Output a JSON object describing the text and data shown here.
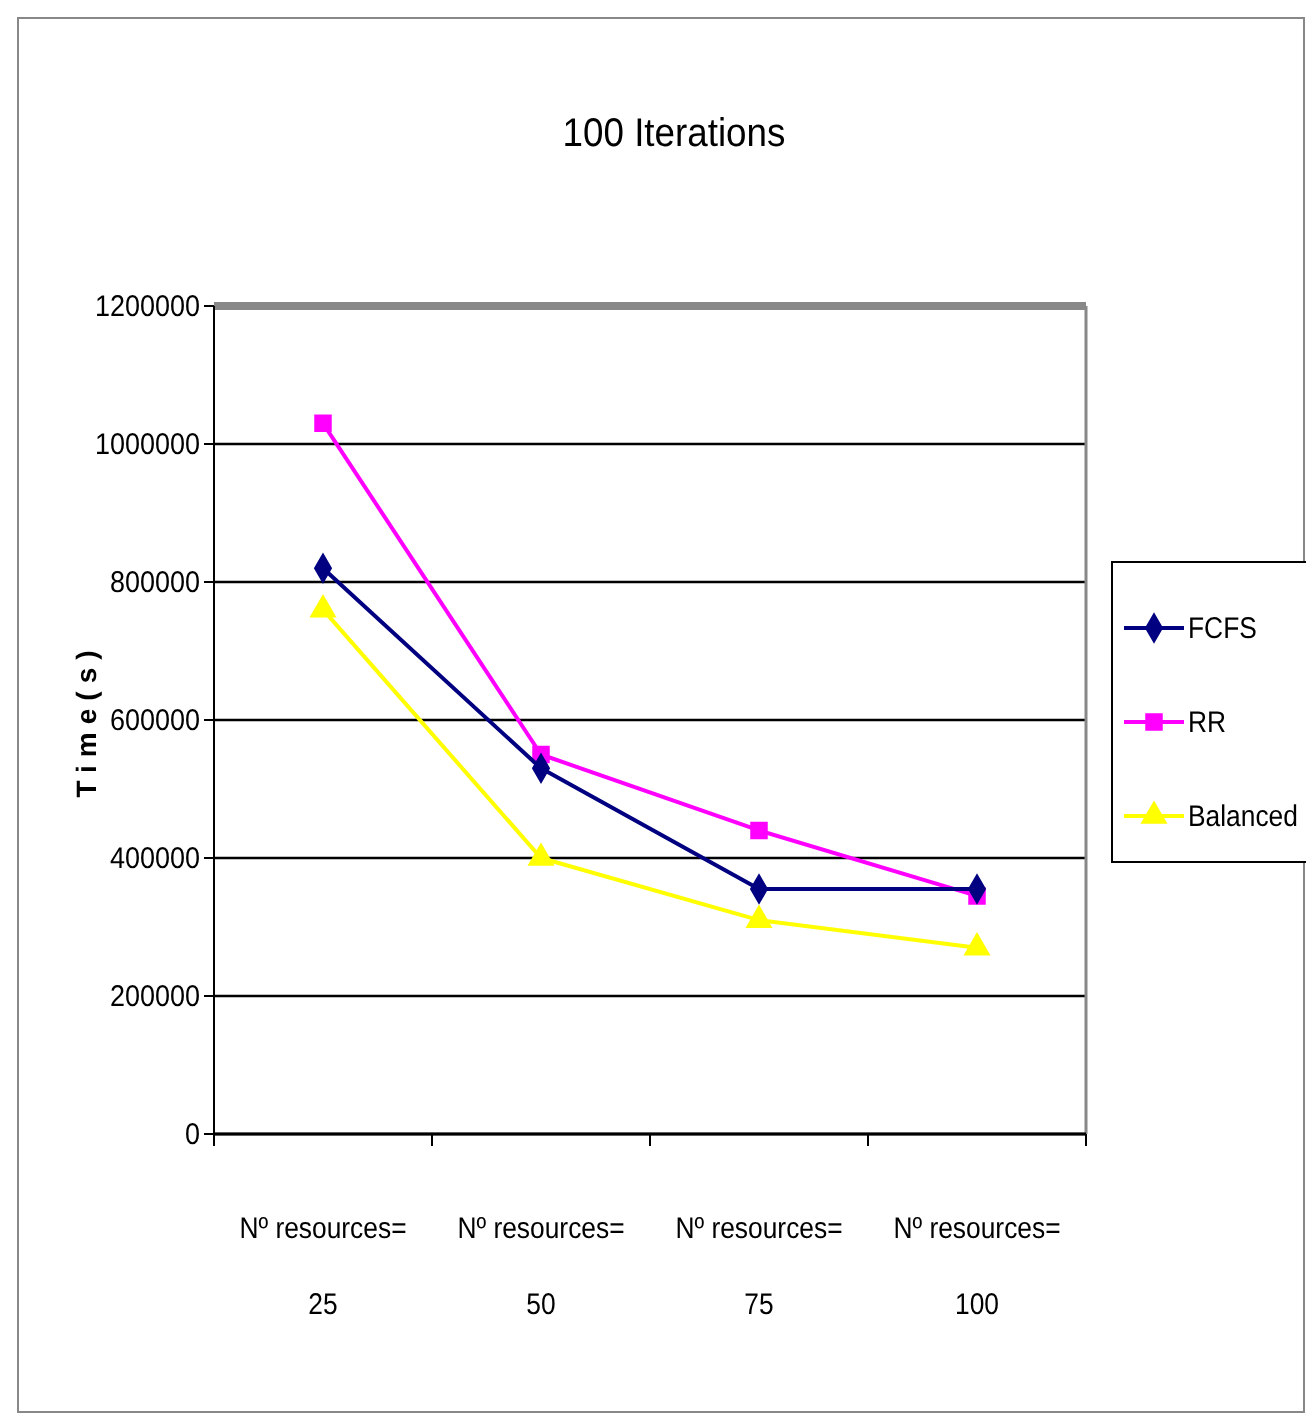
{
  "chart_data": {
    "type": "line",
    "title": "100 Iterations",
    "ylabel": "Time(s)",
    "categories": [
      "Nº resources= 25",
      "Nº resources= 50",
      "Nº resources= 75",
      "Nº resources= 100"
    ],
    "series": [
      {
        "name": "FCFS",
        "color": "#000080",
        "marker": "diamond",
        "values": [
          820000,
          530000,
          355000,
          355000
        ]
      },
      {
        "name": "RR",
        "color": "#ff00ff",
        "marker": "square",
        "values": [
          1030000,
          550000,
          440000,
          345000
        ]
      },
      {
        "name": "Balanced",
        "color": "#ffff00",
        "marker": "triangle",
        "values": [
          760000,
          400000,
          310000,
          270000
        ]
      }
    ],
    "ylim": [
      0,
      1200000
    ],
    "yticks": [
      0,
      200000,
      400000,
      600000,
      800000,
      1000000,
      1200000
    ],
    "grid": "y",
    "legend": "right"
  }
}
